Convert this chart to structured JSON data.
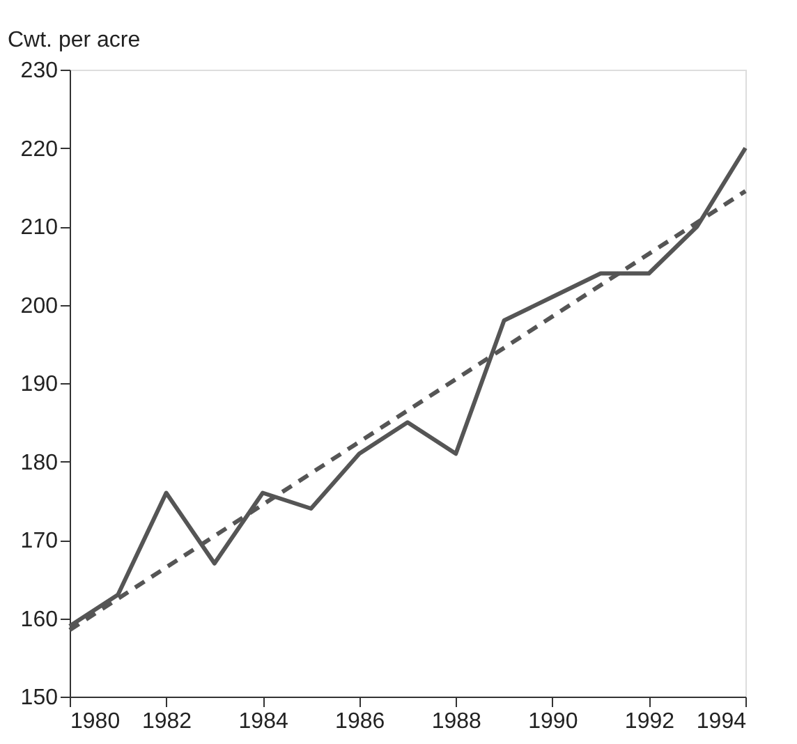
{
  "chart_data": {
    "type": "line",
    "ylabel": "Cwt. per acre",
    "series": [
      {
        "color": "#555555",
        "line_style": "solid",
        "x": [
          1980,
          1981,
          1982,
          1983,
          1984,
          1985,
          1986,
          1987,
          1988,
          1989,
          1990,
          1991,
          1992,
          1993,
          1994
        ],
        "values": [
          159,
          163,
          176,
          167,
          176,
          174,
          181,
          185,
          181,
          198,
          201,
          204,
          204,
          210,
          220
        ]
      },
      {
        "color": "#555555",
        "line_style": "dashed",
        "x": [
          1980,
          1994
        ],
        "values": [
          158.5,
          214.5
        ]
      }
    ],
    "xlim": [
      1980,
      1994
    ],
    "ylim": [
      150,
      230
    ],
    "xticks": [
      1980,
      1982,
      1984,
      1986,
      1988,
      1990,
      1992,
      1994
    ],
    "yticks": [
      150,
      160,
      170,
      180,
      190,
      200,
      210,
      220,
      230
    ],
    "grid": false,
    "marker": "none"
  }
}
